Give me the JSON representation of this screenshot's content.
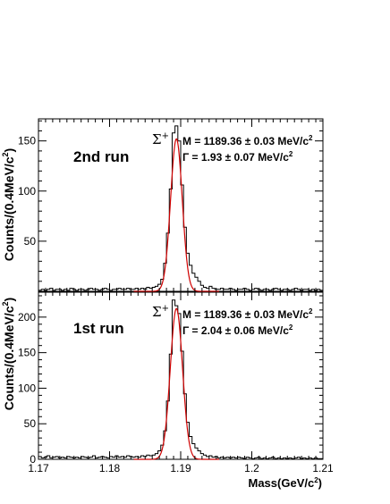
{
  "chart_data": [
    {
      "type": "line",
      "run_label": "2nd run",
      "ylabel": "Counts/(0.4MeV/c",
      "ylabel_sup": "2",
      "ylabel_close": ")",
      "ylim": [
        0,
        172
      ],
      "yticks": [
        50,
        100,
        150
      ],
      "xlim": [
        1.17,
        1.21
      ],
      "particle": "Σ",
      "particle_sup": "+",
      "mass_line": "M = 1189.36 ± 0.03 MeV/c",
      "mass_sup": "2",
      "width_line": "Γ = 1.93 ± 0.07 MeV/c",
      "width_sup": "2",
      "peak": 1.1894,
      "sigma": 0.00082,
      "amp": 152,
      "bins": [
        [
          1.1702,
          1
        ],
        [
          1.1706,
          2
        ],
        [
          1.171,
          1
        ],
        [
          1.1714,
          2
        ],
        [
          1.1718,
          3
        ],
        [
          1.1722,
          1
        ],
        [
          1.1726,
          2
        ],
        [
          1.173,
          2
        ],
        [
          1.1734,
          1
        ],
        [
          1.1738,
          2
        ],
        [
          1.1742,
          1
        ],
        [
          1.1746,
          3
        ],
        [
          1.175,
          2
        ],
        [
          1.1754,
          1
        ],
        [
          1.1758,
          2
        ],
        [
          1.1762,
          2
        ],
        [
          1.1766,
          1
        ],
        [
          1.177,
          2
        ],
        [
          1.1774,
          3
        ],
        [
          1.1778,
          2
        ],
        [
          1.1782,
          2
        ],
        [
          1.1786,
          1
        ],
        [
          1.179,
          2
        ],
        [
          1.1794,
          3
        ],
        [
          1.1798,
          2
        ],
        [
          1.1802,
          1
        ],
        [
          1.1806,
          2
        ],
        [
          1.181,
          2
        ],
        [
          1.1814,
          3
        ],
        [
          1.1818,
          2
        ],
        [
          1.1822,
          2
        ],
        [
          1.1826,
          3
        ],
        [
          1.183,
          2
        ],
        [
          1.1834,
          2
        ],
        [
          1.1838,
          3
        ],
        [
          1.1842,
          2
        ],
        [
          1.1846,
          3
        ],
        [
          1.185,
          2
        ],
        [
          1.1854,
          4
        ],
        [
          1.1858,
          3
        ],
        [
          1.1862,
          4
        ],
        [
          1.1866,
          5
        ],
        [
          1.187,
          7
        ],
        [
          1.1874,
          12
        ],
        [
          1.1878,
          28
        ],
        [
          1.1882,
          58
        ],
        [
          1.1886,
          102
        ],
        [
          1.189,
          158
        ],
        [
          1.1894,
          165
        ],
        [
          1.1898,
          150
        ],
        [
          1.1902,
          106
        ],
        [
          1.1906,
          64
        ],
        [
          1.191,
          38
        ],
        [
          1.1914,
          26
        ],
        [
          1.1918,
          18
        ],
        [
          1.1922,
          14
        ],
        [
          1.1926,
          10
        ],
        [
          1.193,
          6
        ],
        [
          1.1934,
          4
        ],
        [
          1.1938,
          3
        ],
        [
          1.1942,
          5
        ],
        [
          1.1946,
          3
        ],
        [
          1.195,
          2
        ],
        [
          1.1954,
          2
        ],
        [
          1.1958,
          3
        ],
        [
          1.1962,
          2
        ],
        [
          1.1966,
          2
        ],
        [
          1.197,
          3
        ],
        [
          1.1974,
          2
        ],
        [
          1.1978,
          1
        ],
        [
          1.1982,
          2
        ],
        [
          1.1986,
          2
        ],
        [
          1.199,
          3
        ],
        [
          1.1994,
          2
        ],
        [
          1.1998,
          1
        ],
        [
          1.2002,
          2
        ],
        [
          1.2006,
          3
        ],
        [
          1.201,
          2
        ],
        [
          1.2014,
          1
        ],
        [
          1.2018,
          2
        ],
        [
          1.2022,
          2
        ],
        [
          1.2026,
          1
        ],
        [
          1.203,
          2
        ],
        [
          1.2034,
          3
        ],
        [
          1.2038,
          2
        ],
        [
          1.2042,
          1
        ],
        [
          1.2046,
          2
        ],
        [
          1.205,
          2
        ],
        [
          1.2054,
          1
        ],
        [
          1.2058,
          2
        ],
        [
          1.2062,
          3
        ],
        [
          1.2066,
          2
        ],
        [
          1.207,
          1
        ],
        [
          1.2074,
          2
        ],
        [
          1.2078,
          2
        ],
        [
          1.2082,
          1
        ],
        [
          1.2086,
          2
        ],
        [
          1.209,
          1
        ],
        [
          1.2094,
          2
        ],
        [
          1.2098,
          1
        ]
      ]
    },
    {
      "type": "line",
      "run_label": "1st run",
      "ylabel": "Counts/(0.4MeV/c",
      "ylabel_sup": "2",
      "ylabel_close": ")",
      "ylim": [
        0,
        235
      ],
      "yticks": [
        0,
        50,
        100,
        150,
        200
      ],
      "xlim": [
        1.17,
        1.21
      ],
      "xticks": [
        1.17,
        1.18,
        1.19,
        1.2,
        1.21
      ],
      "xlabel": "Mass(GeV/c",
      "xlabel_sup": "2",
      "xlabel_close": ")",
      "particle": "Σ",
      "particle_sup": "+",
      "mass_line": "M = 1189.36 ± 0.03 MeV/c",
      "mass_sup": "2",
      "width_line": "Γ = 2.04 ± 0.06 MeV/c",
      "width_sup": "2",
      "peak": 1.1894,
      "sigma": 0.00086,
      "amp": 212,
      "bins": [
        [
          1.1702,
          4
        ],
        [
          1.1706,
          2
        ],
        [
          1.171,
          3
        ],
        [
          1.1714,
          5
        ],
        [
          1.1718,
          2
        ],
        [
          1.1722,
          3
        ],
        [
          1.1726,
          4
        ],
        [
          1.173,
          2
        ],
        [
          1.1734,
          3
        ],
        [
          1.1738,
          2
        ],
        [
          1.1742,
          4
        ],
        [
          1.1746,
          3
        ],
        [
          1.175,
          2
        ],
        [
          1.1754,
          3
        ],
        [
          1.1758,
          2
        ],
        [
          1.1762,
          4
        ],
        [
          1.1766,
          3
        ],
        [
          1.177,
          2
        ],
        [
          1.1774,
          3
        ],
        [
          1.1778,
          5
        ],
        [
          1.1782,
          2
        ],
        [
          1.1786,
          3
        ],
        [
          1.179,
          4
        ],
        [
          1.1794,
          3
        ],
        [
          1.1798,
          2
        ],
        [
          1.1802,
          4
        ],
        [
          1.1806,
          3
        ],
        [
          1.181,
          5
        ],
        [
          1.1814,
          3
        ],
        [
          1.1818,
          4
        ],
        [
          1.1822,
          3
        ],
        [
          1.1826,
          5
        ],
        [
          1.183,
          4
        ],
        [
          1.1834,
          3
        ],
        [
          1.1838,
          4
        ],
        [
          1.1842,
          3
        ],
        [
          1.1846,
          5
        ],
        [
          1.185,
          4
        ],
        [
          1.1854,
          6
        ],
        [
          1.1858,
          5
        ],
        [
          1.1862,
          6
        ],
        [
          1.1866,
          8
        ],
        [
          1.187,
          12
        ],
        [
          1.1874,
          20
        ],
        [
          1.1878,
          40
        ],
        [
          1.1882,
          82
        ],
        [
          1.1886,
          148
        ],
        [
          1.189,
          224
        ],
        [
          1.1894,
          216
        ],
        [
          1.1898,
          205
        ],
        [
          1.1902,
          152
        ],
        [
          1.1906,
          92
        ],
        [
          1.191,
          52
        ],
        [
          1.1914,
          32
        ],
        [
          1.1918,
          22
        ],
        [
          1.1922,
          16
        ],
        [
          1.1926,
          12
        ],
        [
          1.193,
          8
        ],
        [
          1.1934,
          6
        ],
        [
          1.1938,
          4
        ],
        [
          1.1942,
          5
        ],
        [
          1.1946,
          3
        ],
        [
          1.195,
          4
        ],
        [
          1.1954,
          2
        ],
        [
          1.1958,
          3
        ],
        [
          1.1962,
          2
        ],
        [
          1.1966,
          3
        ],
        [
          1.197,
          2
        ],
        [
          1.1974,
          3
        ],
        [
          1.1978,
          2
        ],
        [
          1.1982,
          3
        ],
        [
          1.1986,
          2
        ],
        [
          1.199,
          1
        ],
        [
          1.1994,
          3
        ],
        [
          1.1998,
          2
        ],
        [
          1.2002,
          1
        ],
        [
          1.2006,
          2
        ],
        [
          1.201,
          3
        ],
        [
          1.2014,
          1
        ],
        [
          1.2018,
          2
        ],
        [
          1.2022,
          1
        ],
        [
          1.2026,
          2
        ],
        [
          1.203,
          3
        ],
        [
          1.2034,
          1
        ],
        [
          1.2038,
          2
        ],
        [
          1.2042,
          1
        ],
        [
          1.2046,
          2
        ],
        [
          1.205,
          1
        ],
        [
          1.2054,
          2
        ],
        [
          1.2058,
          1
        ],
        [
          1.2062,
          2
        ],
        [
          1.2066,
          3
        ],
        [
          1.207,
          1
        ],
        [
          1.2074,
          2
        ],
        [
          1.2078,
          1
        ],
        [
          1.2082,
          2
        ],
        [
          1.2086,
          1
        ],
        [
          1.209,
          2
        ],
        [
          1.2094,
          1
        ],
        [
          1.2098,
          1
        ]
      ]
    }
  ]
}
